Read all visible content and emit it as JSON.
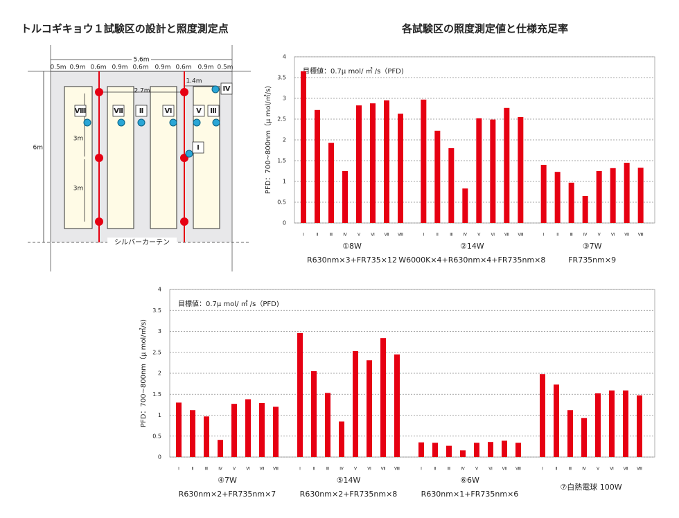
{
  "diagram": {
    "title": "トルコギキョウ１試験区の設計と照度測定点",
    "total_width": "5.6m",
    "segments": [
      "0.5m",
      "0.9m",
      "0.6m",
      "0.9m",
      "0.6m",
      "0.9m",
      "0.6m",
      "0.9m",
      "0.5m"
    ],
    "height": "6m",
    "spacing": [
      "3m",
      "3m"
    ],
    "offset_a": "1.4m",
    "offset_b": "2.7m",
    "curtain": "シルバーカーテン",
    "points": [
      "Ⅷ",
      "Ⅶ",
      "Ⅱ",
      "Ⅵ",
      "Ⅴ",
      "Ⅲ",
      "Ⅳ",
      "Ⅰ"
    ]
  },
  "chart_data": [
    {
      "type": "bar",
      "title": "各試験区の照度測定値と仕様充足率",
      "y_label": "PFD：700~800nm（μ mol/㎡/s)",
      "annotation": "目標値：0.7μ mol/ ㎡ /s（PFD)",
      "color": "#e60012",
      "grid": true,
      "ylim": [
        0,
        4
      ],
      "yticks": [
        0,
        0.5,
        1,
        1.5,
        2,
        2.5,
        3,
        3.5,
        4
      ],
      "groups": [
        {
          "label": "①8W",
          "spec": "R630nm×3+FR735×12",
          "categories": [
            "Ⅰ",
            "Ⅱ",
            "Ⅲ",
            "Ⅳ",
            "Ⅴ",
            "Ⅵ",
            "Ⅶ",
            "Ⅷ"
          ],
          "values": [
            3.65,
            2.72,
            1.93,
            1.25,
            2.83,
            2.88,
            2.95,
            2.63
          ]
        },
        {
          "label": "②14W",
          "spec": "W6000K×4+R630nm×4+FR735nm×8",
          "categories": [
            "Ⅰ",
            "Ⅱ",
            "Ⅲ",
            "Ⅳ",
            "Ⅴ",
            "Ⅵ",
            "Ⅶ",
            "Ⅷ"
          ],
          "values": [
            2.97,
            2.22,
            1.8,
            0.83,
            2.52,
            2.49,
            2.77,
            2.55
          ]
        },
        {
          "label": "③7W",
          "spec": "FR735nm×9",
          "categories": [
            "Ⅰ",
            "Ⅱ",
            "Ⅲ",
            "Ⅳ",
            "Ⅴ",
            "Ⅵ",
            "Ⅶ",
            "Ⅷ"
          ],
          "values": [
            1.4,
            1.23,
            0.97,
            0.65,
            1.25,
            1.32,
            1.45,
            1.33
          ]
        }
      ]
    },
    {
      "type": "bar",
      "y_label": "PFD：700~800nm（μ mol/㎡/s)",
      "annotation": "目標値：0.7μ mol/ ㎡ /s（PFD)",
      "color": "#e60012",
      "grid": true,
      "ylim": [
        0,
        4
      ],
      "yticks": [
        0,
        0.5,
        1,
        1.5,
        2,
        2.5,
        3,
        3.5,
        4
      ],
      "groups": [
        {
          "label": "④7W",
          "spec": "R630nm×2+FR735nm×7",
          "categories": [
            "Ⅰ",
            "Ⅱ",
            "Ⅲ",
            "Ⅳ",
            "Ⅴ",
            "Ⅵ",
            "Ⅶ",
            "Ⅷ"
          ],
          "values": [
            1.3,
            1.12,
            0.97,
            0.41,
            1.27,
            1.38,
            1.29,
            1.2
          ]
        },
        {
          "label": "⑤14W",
          "spec": "R630nm×2+FR735nm×8",
          "categories": [
            "Ⅰ",
            "Ⅱ",
            "Ⅲ",
            "Ⅳ",
            "Ⅴ",
            "Ⅵ",
            "Ⅶ",
            "Ⅷ"
          ],
          "values": [
            2.96,
            2.05,
            1.53,
            0.85,
            2.53,
            2.31,
            2.84,
            2.45
          ]
        },
        {
          "label": "⑥6W",
          "spec": "R630nm×1+FR735nm×6",
          "categories": [
            "Ⅰ",
            "Ⅱ",
            "Ⅲ",
            "Ⅳ",
            "Ⅴ",
            "Ⅵ",
            "Ⅶ",
            "Ⅷ"
          ],
          "values": [
            0.35,
            0.34,
            0.27,
            0.16,
            0.34,
            0.36,
            0.39,
            0.34
          ]
        },
        {
          "label": "⑦白熱電球 100W",
          "categories": [
            "Ⅰ",
            "Ⅱ",
            "Ⅲ",
            "Ⅳ",
            "Ⅴ",
            "Ⅵ",
            "Ⅶ",
            "Ⅷ"
          ],
          "values": [
            1.98,
            1.73,
            1.12,
            0.93,
            1.52,
            1.59,
            1.59,
            1.47
          ]
        }
      ]
    }
  ]
}
